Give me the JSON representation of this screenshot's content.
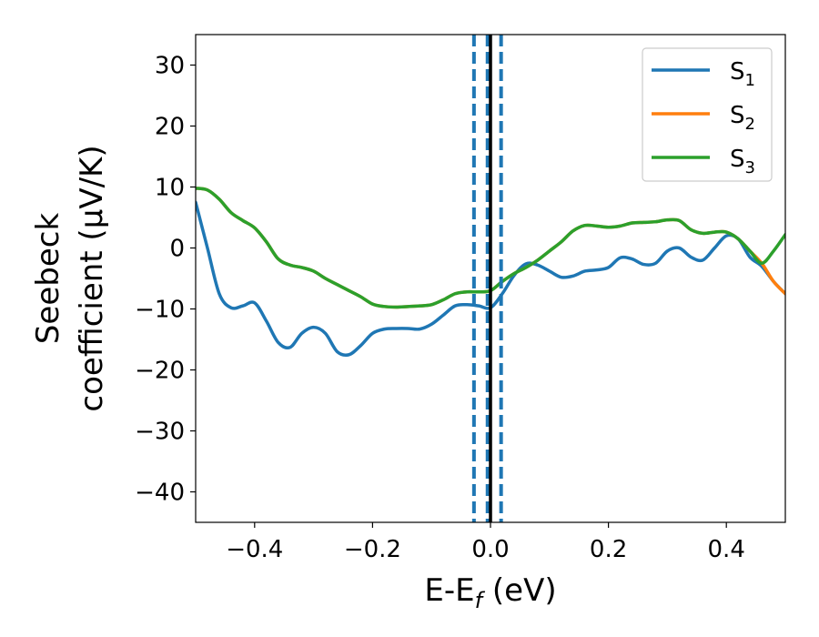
{
  "chart_data": {
    "type": "line",
    "xlabel": "E-E",
    "xlabel_sub": "f",
    "xlabel_unit": " (eV)",
    "ylabel_line1": "Seebeck",
    "ylabel_line2": "coefficient  (μV/K)",
    "xlim": [
      -0.5,
      0.5
    ],
    "ylim": [
      -45,
      35
    ],
    "xticks": [
      -0.4,
      -0.2,
      0.0,
      0.2,
      0.4
    ],
    "xtick_labels": [
      "−0.4",
      "−0.2",
      "0.0",
      "0.2",
      "0.4"
    ],
    "yticks": [
      -40,
      -30,
      -20,
      -10,
      0,
      10,
      20,
      30
    ],
    "ytick_labels": [
      "−40",
      "−30",
      "−20",
      "−10",
      "0",
      "10",
      "20",
      "30"
    ],
    "grid": false,
    "legend_position": "top-right",
    "vlines": [
      {
        "x": -0.028,
        "style": "dashed",
        "color": "#1f77b4"
      },
      {
        "x": -0.005,
        "style": "dashed",
        "color": "#1f77b4"
      },
      {
        "x": 0.018,
        "style": "dashed",
        "color": "#1f77b4"
      },
      {
        "x": 0.0,
        "style": "solid",
        "color": "#000000"
      }
    ],
    "series": [
      {
        "name": "S",
        "sub": "1",
        "color": "#1f77b4",
        "x": [
          -0.5,
          -0.48,
          -0.46,
          -0.44,
          -0.42,
          -0.4,
          -0.38,
          -0.36,
          -0.34,
          -0.32,
          -0.3,
          -0.28,
          -0.26,
          -0.24,
          -0.22,
          -0.2,
          -0.18,
          -0.16,
          -0.14,
          -0.12,
          -0.1,
          -0.08,
          -0.06,
          -0.04,
          -0.02,
          0.0,
          0.02,
          0.04,
          0.06,
          0.08,
          0.1,
          0.12,
          0.14,
          0.16,
          0.18,
          0.2,
          0.22,
          0.24,
          0.26,
          0.28,
          0.3,
          0.32,
          0.34,
          0.36,
          0.38,
          0.4,
          0.42,
          0.44,
          0.46,
          0.48,
          0.5
        ],
        "y": [
          7.5,
          0,
          -7.5,
          -9.8,
          -9.5,
          -9,
          -12,
          -15.5,
          -16.3,
          -14,
          -13,
          -14,
          -17,
          -17.5,
          -16,
          -14,
          -13.3,
          -13.2,
          -13.2,
          -13.3,
          -12.5,
          -11,
          -9.5,
          -9.3,
          -9.5,
          -9.8,
          -7.5,
          -4.5,
          -2.6,
          -2.8,
          -3.8,
          -4.8,
          -4.6,
          -3.8,
          -3.6,
          -3.2,
          -1.6,
          -1.8,
          -2.7,
          -2.5,
          -0.5,
          0,
          -1.5,
          -2,
          0,
          2,
          1.5,
          -1.5,
          -3,
          -5.5,
          -7.5
        ]
      },
      {
        "name": "S",
        "sub": "2",
        "color": "#ff7f0e",
        "x": [
          -0.5,
          -0.48,
          -0.46,
          -0.44,
          -0.42,
          -0.4,
          -0.38,
          -0.36,
          -0.34,
          -0.32,
          -0.3,
          -0.28,
          -0.26,
          -0.24,
          -0.22,
          -0.2,
          -0.18,
          -0.16,
          -0.14,
          -0.12,
          -0.1,
          -0.08,
          -0.06,
          -0.04,
          -0.02,
          0.0,
          0.02,
          0.04,
          0.06,
          0.08,
          0.1,
          0.12,
          0.14,
          0.16,
          0.18,
          0.2,
          0.22,
          0.24,
          0.26,
          0.28,
          0.3,
          0.32,
          0.34,
          0.36,
          0.38,
          0.4,
          0.42,
          0.44,
          0.46,
          0.48,
          0.5
        ],
        "y": [
          9.8,
          9.5,
          8,
          5.8,
          4.5,
          3.3,
          1,
          -1.8,
          -2.8,
          -3.2,
          -3.8,
          -5,
          -6,
          -7,
          -8,
          -9.2,
          -9.6,
          -9.7,
          -9.6,
          -9.5,
          -9.3,
          -8.5,
          -7.5,
          -7.2,
          -7.2,
          -7,
          -5.5,
          -4.2,
          -3.2,
          -2,
          -0.5,
          1,
          2.8,
          3.7,
          3.6,
          3.4,
          3.6,
          4.1,
          4.2,
          4.3,
          4.6,
          4.5,
          3,
          2.4,
          2.6,
          2.6,
          1.5,
          -0.5,
          -2.5,
          -5.5,
          -7.5
        ]
      },
      {
        "name": "S",
        "sub": "3",
        "color": "#2ca02c",
        "x": [
          -0.5,
          -0.48,
          -0.46,
          -0.44,
          -0.42,
          -0.4,
          -0.38,
          -0.36,
          -0.34,
          -0.32,
          -0.3,
          -0.28,
          -0.26,
          -0.24,
          -0.22,
          -0.2,
          -0.18,
          -0.16,
          -0.14,
          -0.12,
          -0.1,
          -0.08,
          -0.06,
          -0.04,
          -0.02,
          0.0,
          0.02,
          0.04,
          0.06,
          0.08,
          0.1,
          0.12,
          0.14,
          0.16,
          0.18,
          0.2,
          0.22,
          0.24,
          0.26,
          0.28,
          0.3,
          0.32,
          0.34,
          0.36,
          0.38,
          0.4,
          0.42,
          0.44,
          0.46,
          0.48,
          0.5
        ],
        "y": [
          9.8,
          9.5,
          8,
          5.8,
          4.5,
          3.3,
          1,
          -1.8,
          -2.8,
          -3.2,
          -3.8,
          -5,
          -6,
          -7,
          -8,
          -9.2,
          -9.6,
          -9.7,
          -9.6,
          -9.5,
          -9.3,
          -8.5,
          -7.5,
          -7.2,
          -7.2,
          -7,
          -5.5,
          -4.2,
          -3.2,
          -2,
          -0.5,
          1,
          2.8,
          3.7,
          3.6,
          3.4,
          3.6,
          4.1,
          4.2,
          4.3,
          4.6,
          4.5,
          3,
          2.4,
          2.6,
          2.6,
          1.5,
          -0.5,
          -2.5,
          -0.5,
          2.2
        ]
      }
    ]
  }
}
